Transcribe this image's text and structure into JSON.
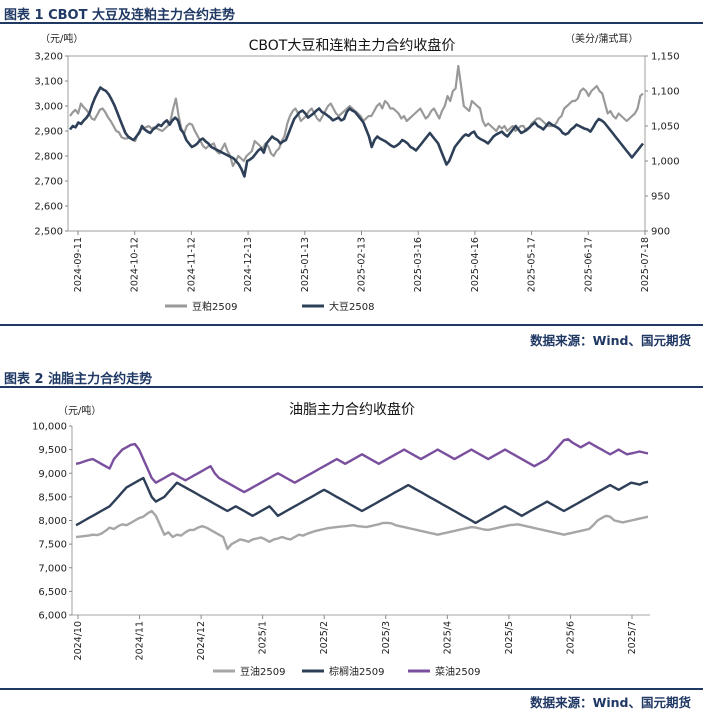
{
  "chart1": {
    "section_title": "图表 1 CBOT 大豆及连粕主力合约走势",
    "source": "数据来源：Wind、国元期货",
    "chart_data": {
      "type": "line",
      "title": "CBOT大豆和连粕主力合约收盘价",
      "yunit_left": "（元/吨）",
      "yunit_right": "（美分/蒲式耳）",
      "x_ticks": [
        "2024-09-11",
        "2024-10-12",
        "2024-11-12",
        "2024-12-13",
        "2025-01-13",
        "2025-02-13",
        "2025-03-16",
        "2025-04-16",
        "2025-05-17",
        "2025-06-17",
        "2025-07-18"
      ],
      "y_left_range": [
        2500,
        3200
      ],
      "y_left_ticks": [
        "2,500",
        "2,600",
        "2,700",
        "2,800",
        "2,900",
        "3,000",
        "3,100",
        "3,200"
      ],
      "y_right_range": [
        900,
        1150
      ],
      "y_right_ticks": [
        "900",
        "950",
        "1,000",
        "1,050",
        "1,100",
        "1,150"
      ],
      "series": [
        {
          "name": "豆粕2509",
          "axis": "left",
          "color": "#999999",
          "values": [
            2960,
            2975,
            2985,
            2970,
            3010,
            2995,
            2985,
            2970,
            2950,
            2945,
            2965,
            2985,
            2990,
            2975,
            2955,
            2940,
            2920,
            2900,
            2895,
            2875,
            2870,
            2870,
            2875,
            2865,
            2860,
            2890,
            2905,
            2910,
            2915,
            2920,
            2910,
            2915,
            2910,
            2905,
            2900,
            2910,
            2920,
            2940,
            2990,
            3030,
            2960,
            2910,
            2890,
            2920,
            2930,
            2925,
            2900,
            2880,
            2860,
            2840,
            2830,
            2840,
            2845,
            2850,
            2820,
            2810,
            2830,
            2850,
            2820,
            2800,
            2760,
            2780,
            2800,
            2790,
            2780,
            2800,
            2810,
            2820,
            2860,
            2850,
            2840,
            2830,
            2850,
            2840,
            2810,
            2800,
            2820,
            2830,
            2860,
            2880,
            2930,
            2960,
            2980,
            2990,
            2970,
            2940,
            2950,
            2960,
            2980,
            2990,
            2970,
            2950,
            2940,
            2960,
            2980,
            3000,
            3010,
            2990,
            2970,
            2960,
            2970,
            2980,
            2990,
            3000,
            2990,
            2980,
            2970,
            2960,
            2940,
            2950,
            2960,
            2960,
            2980,
            3000,
            3010,
            2990,
            3020,
            3010,
            2990,
            2990,
            2980,
            2970,
            2950,
            2960,
            2940,
            2950,
            2960,
            2970,
            2980,
            2990,
            2970,
            2950,
            2960,
            2980,
            2990,
            2970,
            2950,
            2980,
            3000,
            3040,
            3020,
            3060,
            3070,
            3160,
            3080,
            3000,
            2990,
            2980,
            3020,
            3010,
            3000,
            2990,
            2940,
            2920,
            2930,
            2920,
            2910,
            2900,
            2920,
            2910,
            2920,
            2900,
            2910,
            2920,
            2900,
            2910,
            2920,
            2920,
            2900,
            2910,
            2930,
            2940,
            2950,
            2950,
            2940,
            2930,
            2920,
            2920,
            2920,
            2930,
            2950,
            2960,
            2990,
            3000,
            3010,
            3020,
            3020,
            3030,
            3060,
            3070,
            3060,
            3040,
            3060,
            3070,
            3080,
            3060,
            3050,
            3010,
            2970,
            2980,
            2960,
            2950,
            2970,
            2960,
            2950,
            2940,
            2950,
            2960,
            2970,
            2990,
            3040,
            3050
          ]
        },
        {
          "name": "大豆2508",
          "axis": "right",
          "color": "#2e3f58",
          "values": [
            1045,
            1050,
            1048,
            1055,
            1053,
            1058,
            1062,
            1068,
            1080,
            1090,
            1098,
            1105,
            1102,
            1100,
            1095,
            1088,
            1080,
            1070,
            1060,
            1050,
            1040,
            1035,
            1032,
            1030,
            1035,
            1040,
            1050,
            1045,
            1042,
            1040,
            1045,
            1048,
            1052,
            1050,
            1055,
            1058,
            1052,
            1058,
            1062,
            1058,
            1045,
            1040,
            1030,
            1025,
            1020,
            1022,
            1025,
            1030,
            1032,
            1028,
            1025,
            1020,
            1018,
            1016,
            1014,
            1012,
            1010,
            1008,
            1006,
            1004,
            1000,
            995,
            988,
            978,
            1000,
            1002,
            1005,
            1010,
            1015,
            1018,
            1012,
            1025,
            1030,
            1035,
            1032,
            1030,
            1025,
            1028,
            1030,
            1040,
            1050,
            1060,
            1065,
            1070,
            1072,
            1068,
            1062,
            1065,
            1068,
            1072,
            1075,
            1070,
            1068,
            1065,
            1062,
            1058,
            1060,
            1062,
            1058,
            1060,
            1070,
            1075,
            1072,
            1070,
            1065,
            1060,
            1055,
            1045,
            1035,
            1020,
            1030,
            1035,
            1032,
            1030,
            1028,
            1025,
            1022,
            1020,
            1022,
            1025,
            1030,
            1028,
            1025,
            1020,
            1018,
            1015,
            1020,
            1025,
            1030,
            1035,
            1040,
            1035,
            1030,
            1025,
            1015,
            1005,
            995,
            1000,
            1010,
            1020,
            1025,
            1030,
            1035,
            1038,
            1036,
            1040,
            1042,
            1035,
            1032,
            1030,
            1028,
            1025,
            1030,
            1035,
            1038,
            1040,
            1042,
            1038,
            1035,
            1040,
            1045,
            1050,
            1045,
            1040,
            1042,
            1045,
            1048,
            1052,
            1055,
            1050,
            1048,
            1045,
            1050,
            1055,
            1052,
            1050,
            1048,
            1045,
            1040,
            1038,
            1040,
            1045,
            1048,
            1052,
            1050,
            1048,
            1046,
            1045,
            1042,
            1048,
            1055,
            1060,
            1058,
            1055,
            1050,
            1045,
            1040,
            1035,
            1030,
            1025,
            1020,
            1015,
            1010,
            1005,
            1010,
            1015,
            1020,
            1025
          ]
        }
      ]
    }
  },
  "chart2": {
    "section_title": "图表 2 油脂主力合约走势",
    "source": "数据来源：Wind、国元期货",
    "chart_data": {
      "type": "line",
      "title": "油脂主力合约收盘价",
      "yunit_left": "（元/吨）",
      "x_ticks": [
        "2024/10",
        "2024/11",
        "2024/12",
        "2025/1",
        "2025/2",
        "2025/3",
        "2025/4",
        "2025/5",
        "2025/6",
        "2025/7"
      ],
      "y_range": [
        6000,
        10000
      ],
      "y_ticks": [
        "6,000",
        "6,500",
        "7,000",
        "7,500",
        "8,000",
        "8,500",
        "9,000",
        "9,500",
        "10,000"
      ],
      "series": [
        {
          "name": "豆油2509",
          "color": "#a6a6a6",
          "values": [
            7650,
            7660,
            7670,
            7680,
            7700,
            7690,
            7720,
            7780,
            7850,
            7820,
            7880,
            7920,
            7900,
            7950,
            8000,
            8050,
            8080,
            8150,
            8200,
            8100,
            7900,
            7700,
            7750,
            7650,
            7700,
            7680,
            7750,
            7800,
            7800,
            7850,
            7880,
            7850,
            7800,
            7750,
            7700,
            7650,
            7400,
            7500,
            7550,
            7600,
            7580,
            7550,
            7600,
            7620,
            7640,
            7600,
            7550,
            7600,
            7620,
            7650,
            7620,
            7600,
            7650,
            7700,
            7680,
            7720,
            7750,
            7780,
            7800,
            7820,
            7840,
            7850,
            7860,
            7870,
            7880,
            7890,
            7900,
            7880,
            7870,
            7860,
            7880,
            7900,
            7920,
            7950,
            7950,
            7940,
            7900,
            7880,
            7860,
            7840,
            7820,
            7800,
            7780,
            7760,
            7740,
            7720,
            7700,
            7720,
            7740,
            7760,
            7780,
            7800,
            7820,
            7840,
            7860,
            7850,
            7830,
            7810,
            7800,
            7820,
            7840,
            7860,
            7880,
            7900,
            7910,
            7920,
            7900,
            7880,
            7860,
            7840,
            7820,
            7800,
            7780,
            7760,
            7740,
            7720,
            7700,
            7720,
            7740,
            7760,
            7780,
            7800,
            7820,
            7900,
            8000,
            8050,
            8100,
            8080,
            8000,
            7980,
            7960,
            7980,
            8000,
            8020,
            8040,
            8060,
            8080
          ]
        },
        {
          "name": "棕榈油2509",
          "color": "#2e3f58",
          "values": [
            7900,
            7950,
            8000,
            8050,
            8100,
            8150,
            8200,
            8250,
            8300,
            8400,
            8500,
            8600,
            8700,
            8750,
            8800,
            8850,
            8900,
            8700,
            8500,
            8400,
            8450,
            8500,
            8600,
            8700,
            8800,
            8750,
            8700,
            8650,
            8600,
            8550,
            8500,
            8450,
            8400,
            8350,
            8300,
            8250,
            8200,
            8250,
            8300,
            8250,
            8200,
            8150,
            8100,
            8150,
            8200,
            8250,
            8300,
            8200,
            8100,
            8150,
            8200,
            8250,
            8300,
            8350,
            8400,
            8450,
            8500,
            8550,
            8600,
            8650,
            8600,
            8550,
            8500,
            8450,
            8400,
            8350,
            8300,
            8250,
            8200,
            8250,
            8300,
            8350,
            8400,
            8450,
            8500,
            8550,
            8600,
            8650,
            8700,
            8750,
            8700,
            8650,
            8600,
            8550,
            8500,
            8450,
            8400,
            8350,
            8300,
            8250,
            8200,
            8150,
            8100,
            8050,
            8000,
            7950,
            8000,
            8050,
            8100,
            8150,
            8200,
            8250,
            8300,
            8250,
            8200,
            8150,
            8100,
            8150,
            8200,
            8250,
            8300,
            8350,
            8400,
            8350,
            8300,
            8250,
            8200,
            8250,
            8300,
            8350,
            8400,
            8450,
            8500,
            8550,
            8600,
            8650,
            8700,
            8750,
            8700,
            8650,
            8700,
            8750,
            8800,
            8780,
            8760,
            8800,
            8820
          ]
        },
        {
          "name": "菜油2509",
          "color": "#7a4f9e",
          "values": [
            9200,
            9220,
            9250,
            9280,
            9300,
            9250,
            9200,
            9150,
            9100,
            9300,
            9400,
            9500,
            9550,
            9600,
            9620,
            9500,
            9300,
            9100,
            8900,
            8800,
            8850,
            8900,
            8950,
            9000,
            8950,
            8900,
            8850,
            8900,
            8950,
            9000,
            9050,
            9100,
            9150,
            9000,
            8900,
            8850,
            8800,
            8750,
            8700,
            8650,
            8600,
            8650,
            8700,
            8750,
            8800,
            8850,
            8900,
            8950,
            9000,
            8950,
            8900,
            8850,
            8800,
            8850,
            8900,
            8950,
            9000,
            9050,
            9100,
            9150,
            9200,
            9250,
            9300,
            9250,
            9200,
            9250,
            9300,
            9350,
            9400,
            9350,
            9300,
            9250,
            9200,
            9250,
            9300,
            9350,
            9400,
            9450,
            9500,
            9450,
            9400,
            9350,
            9300,
            9350,
            9400,
            9450,
            9500,
            9450,
            9400,
            9350,
            9300,
            9350,
            9400,
            9450,
            9500,
            9450,
            9400,
            9350,
            9300,
            9350,
            9400,
            9450,
            9500,
            9450,
            9400,
            9350,
            9300,
            9250,
            9200,
            9150,
            9200,
            9250,
            9300,
            9400,
            9500,
            9600,
            9700,
            9720,
            9650,
            9600,
            9550,
            9600,
            9650,
            9600,
            9550,
            9500,
            9450,
            9400,
            9450,
            9500,
            9450,
            9400,
            9420,
            9440,
            9460,
            9440,
            9420
          ]
        }
      ]
    }
  }
}
